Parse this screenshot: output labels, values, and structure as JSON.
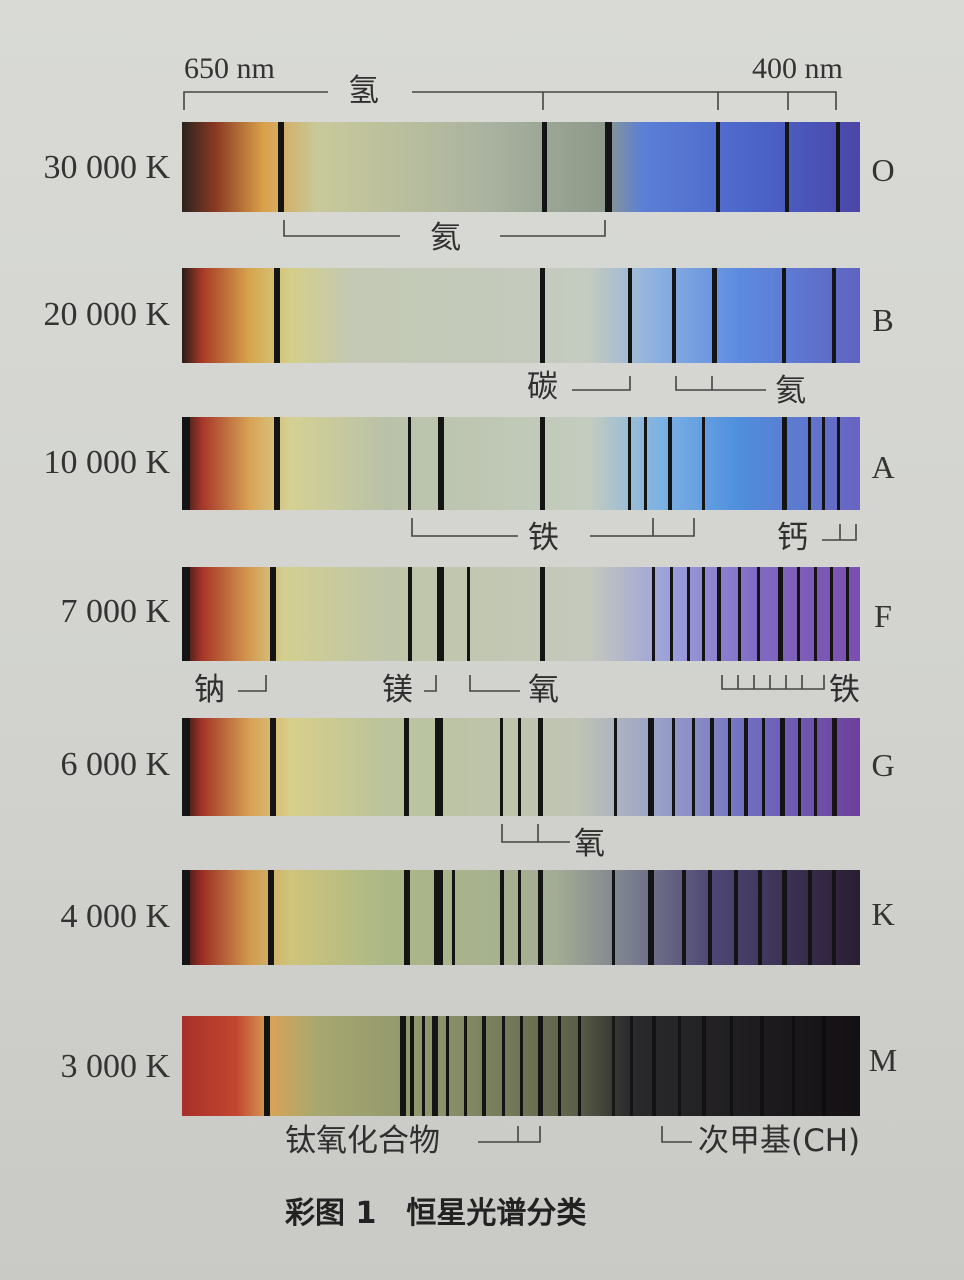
{
  "wavelength": {
    "left": "650 nm",
    "right": "400 nm",
    "top_element": "氢"
  },
  "rows": [
    {
      "temp": "30 000 K",
      "cls": "O"
    },
    {
      "temp": "20 000 K",
      "cls": "B"
    },
    {
      "temp": "10 000 K",
      "cls": "A"
    },
    {
      "temp": "7 000 K",
      "cls": "F"
    },
    {
      "temp": "6 000 K",
      "cls": "G"
    },
    {
      "temp": "4 000 K",
      "cls": "K"
    },
    {
      "temp": "3 000 K",
      "cls": "M"
    }
  ],
  "labels": {
    "o_helium": "氦",
    "b_carbon": "碳",
    "b_helium": "氦",
    "a_iron": "铁",
    "a_calcium": "钙",
    "f_sodium": "钠",
    "f_magnesium": "镁",
    "f_oxygen": "氧",
    "f_iron": "铁",
    "g_oxygen": "氧",
    "m_tio": "钛氧化合物",
    "m_ch": "次甲基(CH)"
  },
  "caption": "彩图 1　恒星光谱分类",
  "colors": {
    "red": "#b3392a",
    "yellow": "#d8c56a",
    "green_gray": "#a9b69a",
    "blue": "#5f86d9",
    "violet": "#6a56b4",
    "line": "#141414"
  }
}
